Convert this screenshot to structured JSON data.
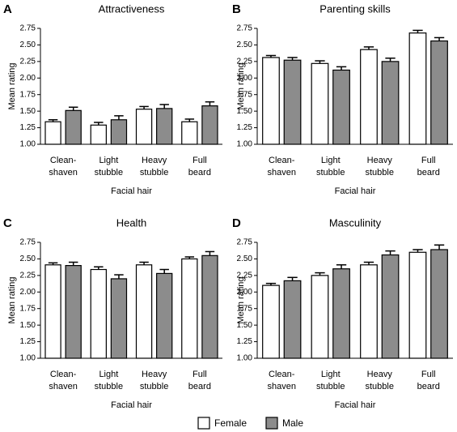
{
  "chart_data": [
    {
      "type": "bar",
      "label": "A",
      "title": "Attractiveness",
      "xlabel": "Facial hair",
      "ylabel": "Mean rating",
      "categories": [
        [
          "Clean-",
          "shaven"
        ],
        [
          "Light",
          "stubble"
        ],
        [
          "Heavy",
          "stubble"
        ],
        [
          "Full",
          "beard"
        ]
      ],
      "series": [
        {
          "name": "Female",
          "color": "#ffffff",
          "values": [
            1.34,
            1.29,
            1.53,
            1.34
          ],
          "errors": [
            0.03,
            0.04,
            0.04,
            0.04
          ]
        },
        {
          "name": "Male",
          "color": "#8c8c8c",
          "values": [
            1.51,
            1.37,
            1.54,
            1.58
          ],
          "errors": [
            0.05,
            0.06,
            0.06,
            0.06
          ]
        }
      ],
      "ylim": [
        1,
        2.75
      ],
      "yticks": [
        {
          "value": 1,
          "label": "1.00"
        },
        1.25,
        {
          "value": 1.5,
          "label": "1.50"
        },
        1.75,
        {
          "value": 2,
          "label": "2.00"
        },
        2.25,
        {
          "value": 2.5,
          "label": "2.50"
        },
        2.75
      ]
    },
    {
      "type": "bar",
      "label": "B",
      "title": "Parenting skills",
      "xlabel": "Facial hair",
      "ylabel": "Mean rating",
      "categories": [
        [
          "Clean-",
          "shaven"
        ],
        [
          "Light",
          "stubble"
        ],
        [
          "Heavy",
          "stubble"
        ],
        [
          "Full",
          "beard"
        ]
      ],
      "series": [
        {
          "color": "#ffffff",
          "values": [
            2.31,
            2.22,
            2.43,
            2.68
          ],
          "errors": [
            0.03,
            0.04,
            0.04,
            0.04
          ]
        },
        {
          "color": "#8c8c8c",
          "values": [
            2.27,
            2.12,
            2.25,
            2.56
          ],
          "errors": [
            0.04,
            0.05,
            0.05,
            0.05
          ]
        }
      ],
      "ylim": [
        1,
        2.75
      ],
      "yticks": [
        {
          "value": 1,
          "label": "1.00"
        },
        1.25,
        {
          "value": 1.5,
          "label": "1.50"
        },
        1.75,
        {
          "value": 2,
          "label": "2.00"
        },
        2.25,
        {
          "value": 2.5,
          "label": "2.50"
        },
        2.75
      ]
    },
    {
      "type": "bar",
      "label": "C",
      "title": "Health",
      "xlabel": "Facial hair",
      "ylabel": "Mean rating",
      "categories": [
        [
          "Clean-",
          "shaven"
        ],
        [
          "Light",
          "stubble"
        ],
        [
          "Heavy",
          "stubble"
        ],
        [
          "Full",
          "beard"
        ]
      ],
      "series": [
        {
          "color": "#ffffff",
          "values": [
            2.41,
            2.34,
            2.41,
            2.5
          ],
          "errors": [
            0.03,
            0.04,
            0.04,
            0.03
          ]
        },
        {
          "color": "#8c8c8c",
          "values": [
            2.4,
            2.2,
            2.28,
            2.55
          ],
          "errors": [
            0.05,
            0.06,
            0.06,
            0.06
          ]
        }
      ],
      "ylim": [
        1,
        2.75
      ],
      "yticks": [
        {
          "value": 1,
          "label": "1.00"
        },
        1.25,
        {
          "value": 1.5,
          "label": "1.50"
        },
        1.75,
        {
          "value": 2,
          "label": "2.00"
        },
        2.25,
        {
          "value": 2.5,
          "label": "2.50"
        },
        2.75
      ]
    },
    {
      "type": "bar",
      "label": "D",
      "title": "Masculinity",
      "xlabel": "Facial hair",
      "ylabel": "Mean rating",
      "categories": [
        [
          "Clean-",
          "shaven"
        ],
        [
          "Light",
          "stubble"
        ],
        [
          "Heavy",
          "stubble"
        ],
        [
          "Full",
          "beard"
        ]
      ],
      "series": [
        {
          "color": "#ffffff",
          "values": [
            2.1,
            2.25,
            2.41,
            2.6
          ],
          "errors": [
            0.03,
            0.04,
            0.04,
            0.04
          ]
        },
        {
          "color": "#8c8c8c",
          "values": [
            2.17,
            2.35,
            2.56,
            2.64
          ],
          "errors": [
            0.05,
            0.06,
            0.06,
            0.07
          ]
        }
      ],
      "ylim": [
        1,
        2.75
      ],
      "yticks": [
        {
          "value": 1,
          "label": "1.00"
        },
        1.25,
        {
          "value": 1.5,
          "label": "1.50"
        },
        1.75,
        {
          "value": 2,
          "label": "2.00"
        },
        2.25,
        {
          "value": 2.5,
          "label": "2.50"
        },
        2.75
      ]
    }
  ]
}
